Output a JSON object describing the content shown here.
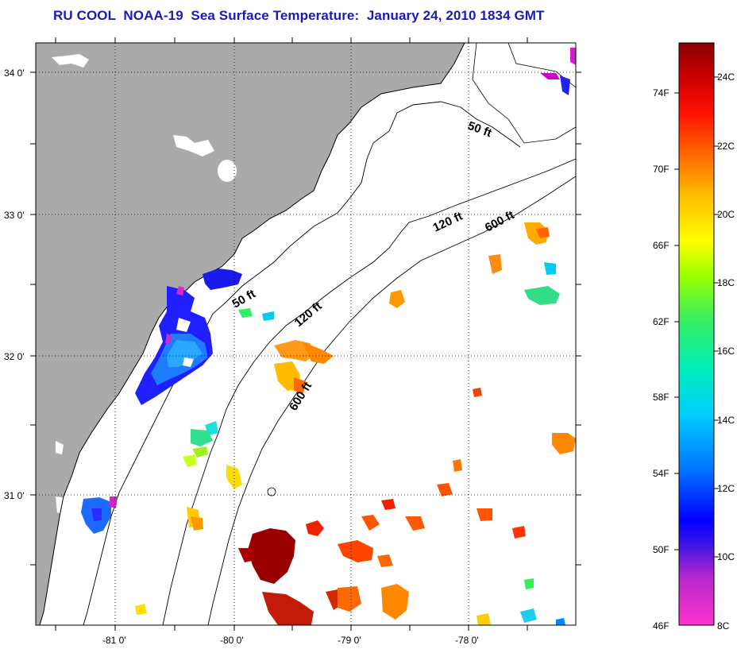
{
  "title": "RU COOL  NOAA-19  Sea Surface Temperature:  January 24, 2010 1834 GMT",
  "map": {
    "lat_labels": [
      "34 0'",
      "33 0'",
      "32 0'",
      "31 0'"
    ],
    "lon_labels": [
      "-81 0'",
      "-80 0'",
      "-79 0'",
      "-78 0'"
    ],
    "isobaths": [
      "50 ft",
      "120 ft",
      "600 ft"
    ],
    "isobath_labels": [
      "50 ft",
      "120 ft",
      "600 ft",
      "50 ft",
      "120 ft",
      "600 ft"
    ],
    "colors": {
      "land": "#aaaaaa",
      "no_data": "#ffffff",
      "grid": "#000000"
    }
  },
  "colorbar": {
    "fahrenheit_labels": [
      "74F",
      "70F",
      "66F",
      "62F",
      "58F",
      "54F",
      "50F",
      "46F"
    ],
    "celsius_labels": [
      "24C",
      "22C",
      "20C",
      "18C",
      "16C",
      "14C",
      "12C",
      "10C",
      "8C"
    ],
    "colors": [
      "#ff33cc",
      "#7f26c8",
      "#0000ff",
      "#0099ff",
      "#00e6e6",
      "#33ee66",
      "#bfff00",
      "#ffff00",
      "#ffaa00",
      "#ff5500",
      "#ee0000",
      "#8b0000"
    ]
  }
}
